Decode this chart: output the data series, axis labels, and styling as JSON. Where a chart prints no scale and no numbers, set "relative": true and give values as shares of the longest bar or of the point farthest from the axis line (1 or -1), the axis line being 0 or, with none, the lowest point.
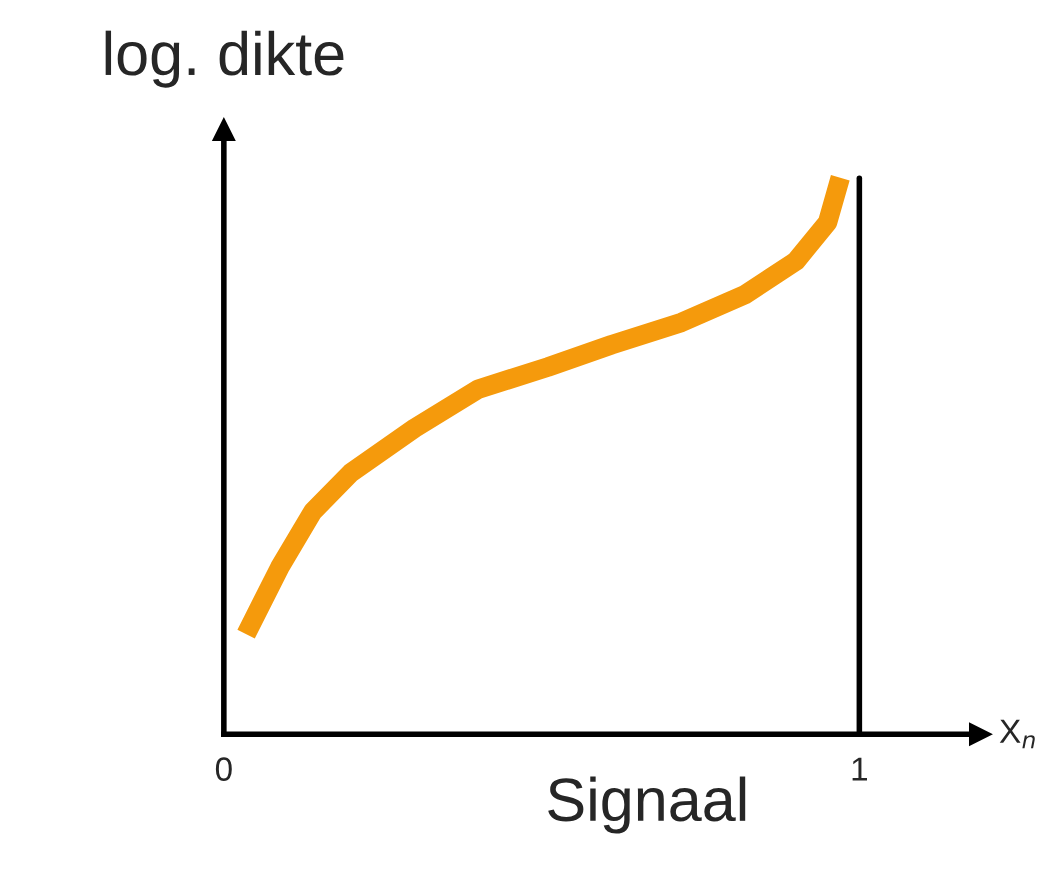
{
  "chart_data": {
    "type": "line",
    "relative": true,
    "xlabel": "Signaal",
    "ylabel": "log. dikte",
    "annotations": [
      "X$_{n}$"
    ],
    "xlim": [
      0,
      1.19
    ],
    "xticks": [
      0,
      1
    ],
    "x": [
      0.035,
      0.088,
      0.14,
      0.2,
      0.3,
      0.4,
      0.51,
      0.61,
      0.72,
      0.82,
      0.9,
      0.95,
      0.97
    ],
    "series": [
      {
        "color": "#f59a0c",
        "values": [
          0.18,
          0.3,
          0.4,
          0.47,
          0.55,
          0.62,
          0.66,
          0.7,
          0.74,
          0.79,
          0.85,
          0.92,
          1.0
        ]
      }
    ],
    "ref_lines": [
      {
        "axis": "x",
        "value": 1,
        "color": "#000000"
      }
    ],
    "grid": false,
    "legend": false
  }
}
